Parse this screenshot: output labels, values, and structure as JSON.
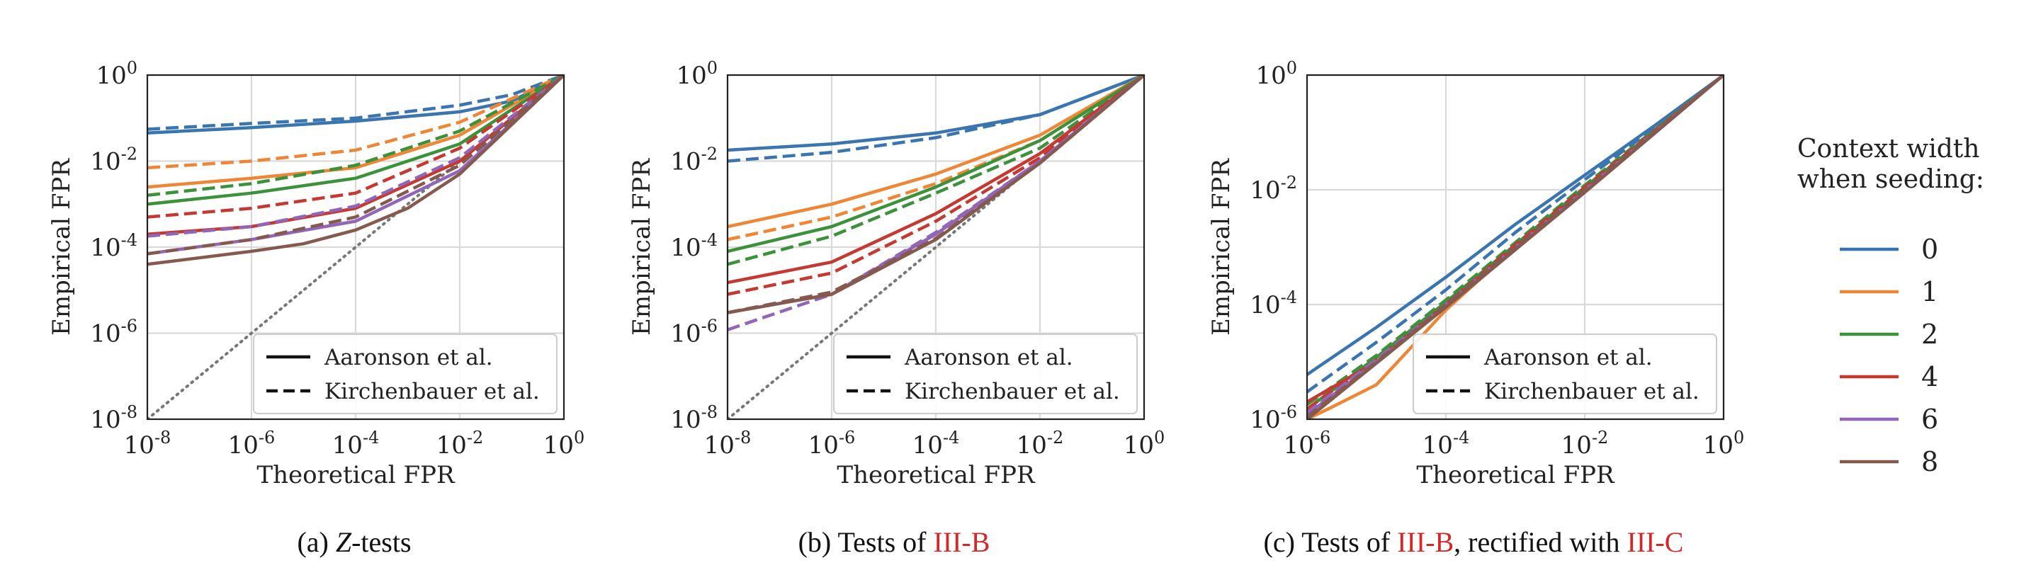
{
  "legend": {
    "title_line1": "Context width",
    "title_line2": "when seeding:",
    "entries": [
      {
        "label": "0",
        "color": "#3a75b0"
      },
      {
        "label": "1",
        "color": "#ef8636"
      },
      {
        "label": "2",
        "color": "#3b923b"
      },
      {
        "label": "4",
        "color": "#c53932"
      },
      {
        "label": "6",
        "color": "#9166b8"
      },
      {
        "label": "8",
        "color": "#85594e"
      }
    ]
  },
  "style_legend": {
    "solid": "Aaronson et al.",
    "dashed": "Kirchenbauer et al."
  },
  "captions": {
    "a": {
      "prefix": "(a) ",
      "math": "Z",
      "suffix": "-tests"
    },
    "b": {
      "prefix": "(b) Tests of ",
      "ref": "III-B"
    },
    "c": {
      "prefix": "(c) Tests of ",
      "ref1": "III-B",
      "middle": ", rectified with ",
      "ref2": "III-C"
    }
  },
  "chart_data": [
    {
      "type": "line",
      "xlabel": "Theoretical FPR",
      "ylabel": "Empirical FPR",
      "xscale": "log",
      "yscale": "log",
      "xlim": [
        1e-08,
        1
      ],
      "ylim": [
        1e-08,
        1
      ],
      "xticks": [
        1e-08,
        1e-06,
        0.0001,
        0.01,
        1
      ],
      "yticks": [
        1e-08,
        1e-06,
        0.0001,
        0.01,
        1
      ],
      "grid": true,
      "legend_position": "lower-right",
      "diagonal": {
        "style": "dotted",
        "color": "#777777"
      },
      "series": [
        {
          "context": "0",
          "method": "Aaronson et al.",
          "style": "solid",
          "x": [
            1e-08,
            1e-06,
            0.0001,
            0.01,
            0.1,
            1
          ],
          "y": [
            0.045,
            0.06,
            0.085,
            0.14,
            0.25,
            1
          ]
        },
        {
          "context": "0",
          "method": "Kirchenbauer et al.",
          "style": "dashed",
          "x": [
            1e-08,
            1e-06,
            0.0001,
            0.01,
            0.1,
            1
          ],
          "y": [
            0.055,
            0.075,
            0.1,
            0.2,
            0.35,
            1
          ]
        },
        {
          "context": "1",
          "method": "Aaronson et al.",
          "style": "solid",
          "x": [
            1e-08,
            1e-06,
            0.0001,
            0.01,
            1
          ],
          "y": [
            0.0025,
            0.004,
            0.007,
            0.04,
            1
          ]
        },
        {
          "context": "1",
          "method": "Kirchenbauer et al.",
          "style": "dashed",
          "x": [
            1e-08,
            1e-06,
            0.0001,
            0.01,
            1
          ],
          "y": [
            0.007,
            0.01,
            0.018,
            0.08,
            1
          ]
        },
        {
          "context": "2",
          "method": "Aaronson et al.",
          "style": "solid",
          "x": [
            1e-08,
            1e-06,
            0.0001,
            0.01,
            1
          ],
          "y": [
            0.001,
            0.0018,
            0.004,
            0.025,
            1
          ]
        },
        {
          "context": "2",
          "method": "Kirchenbauer et al.",
          "style": "dashed",
          "x": [
            1e-08,
            1e-06,
            0.0001,
            0.01,
            1
          ],
          "y": [
            0.0016,
            0.003,
            0.008,
            0.05,
            1
          ]
        },
        {
          "context": "4",
          "method": "Aaronson et al.",
          "style": "solid",
          "x": [
            1e-08,
            1e-06,
            0.0001,
            0.01,
            1
          ],
          "y": [
            0.0002,
            0.0003,
            0.0008,
            0.01,
            1
          ]
        },
        {
          "context": "4",
          "method": "Kirchenbauer et al.",
          "style": "dashed",
          "x": [
            1e-08,
            1e-06,
            0.0001,
            0.01,
            1
          ],
          "y": [
            0.0005,
            0.0008,
            0.0018,
            0.02,
            1
          ]
        },
        {
          "context": "6",
          "method": "Aaronson et al.",
          "style": "solid",
          "x": [
            1e-08,
            1e-06,
            0.0001,
            0.01,
            1
          ],
          "y": [
            7e-05,
            0.00015,
            0.0004,
            0.006,
            1
          ]
        },
        {
          "context": "6",
          "method": "Kirchenbauer et al.",
          "style": "dashed",
          "x": [
            1e-08,
            1e-06,
            0.0001,
            0.01,
            1
          ],
          "y": [
            0.00018,
            0.0003,
            0.0009,
            0.012,
            1
          ]
        },
        {
          "context": "8",
          "method": "Aaronson et al.",
          "style": "solid",
          "x": [
            1e-08,
            1e-06,
            1e-05,
            0.0001,
            0.001,
            0.01,
            1
          ],
          "y": [
            4e-05,
            8e-05,
            0.00012,
            0.00025,
            0.0008,
            0.005,
            1
          ]
        },
        {
          "context": "8",
          "method": "Kirchenbauer et al.",
          "style": "dashed",
          "x": [
            1e-08,
            1e-06,
            0.0001,
            0.01,
            1
          ],
          "y": [
            7e-05,
            0.00015,
            0.0005,
            0.008,
            1
          ]
        }
      ]
    },
    {
      "type": "line",
      "xlabel": "Theoretical FPR",
      "ylabel": "Empirical FPR",
      "xscale": "log",
      "yscale": "log",
      "xlim": [
        1e-08,
        1
      ],
      "ylim": [
        1e-08,
        1
      ],
      "xticks": [
        1e-08,
        1e-06,
        0.0001,
        0.01,
        1
      ],
      "yticks": [
        1e-08,
        1e-06,
        0.0001,
        0.01,
        1
      ],
      "grid": true,
      "legend_position": "lower-right",
      "diagonal": {
        "style": "dotted",
        "color": "#777777"
      },
      "series": [
        {
          "context": "0",
          "method": "Aaronson et al.",
          "style": "solid",
          "x": [
            1e-08,
            1e-06,
            0.0001,
            0.01,
            1
          ],
          "y": [
            0.018,
            0.025,
            0.045,
            0.12,
            1
          ]
        },
        {
          "context": "0",
          "method": "Kirchenbauer et al.",
          "style": "dashed",
          "x": [
            1e-08,
            1e-06,
            0.0001,
            0.01,
            1
          ],
          "y": [
            0.01,
            0.016,
            0.035,
            0.12,
            1
          ]
        },
        {
          "context": "1",
          "method": "Aaronson et al.",
          "style": "solid",
          "x": [
            1e-08,
            1e-06,
            0.0001,
            0.01,
            1
          ],
          "y": [
            0.0003,
            0.001,
            0.005,
            0.04,
            1
          ]
        },
        {
          "context": "1",
          "method": "Kirchenbauer et al.",
          "style": "dashed",
          "x": [
            1e-08,
            1e-06,
            0.0001,
            0.01,
            1
          ],
          "y": [
            0.00015,
            0.0005,
            0.003,
            0.03,
            1
          ]
        },
        {
          "context": "2",
          "method": "Aaronson et al.",
          "style": "solid",
          "x": [
            1e-08,
            1e-06,
            0.0001,
            0.01,
            1
          ],
          "y": [
            8e-05,
            0.0003,
            0.0025,
            0.03,
            1
          ]
        },
        {
          "context": "2",
          "method": "Kirchenbauer et al.",
          "style": "dashed",
          "x": [
            1e-08,
            1e-06,
            0.0001,
            0.01,
            1
          ],
          "y": [
            4e-05,
            0.00018,
            0.0018,
            0.02,
            1
          ]
        },
        {
          "context": "4",
          "method": "Aaronson et al.",
          "style": "solid",
          "x": [
            1e-08,
            1e-06,
            0.0001,
            0.01,
            1
          ],
          "y": [
            1.5e-05,
            4.5e-05,
            0.0006,
            0.015,
            1
          ]
        },
        {
          "context": "4",
          "method": "Kirchenbauer et al.",
          "style": "dashed",
          "x": [
            1e-08,
            1e-06,
            0.0001,
            0.01,
            1
          ],
          "y": [
            8e-06,
            2.5e-05,
            0.0004,
            0.012,
            1
          ]
        },
        {
          "context": "6",
          "method": "Aaronson et al.",
          "style": "solid",
          "x": [
            1e-08,
            1e-06,
            0.0001,
            0.01,
            1
          ],
          "y": [
            3e-06,
            8e-06,
            0.0002,
            0.01,
            1
          ]
        },
        {
          "context": "6",
          "method": "Kirchenbauer et al.",
          "style": "dashed",
          "x": [
            1e-08,
            1e-06,
            0.0001,
            0.01,
            1
          ],
          "y": [
            1.2e-06,
            8e-06,
            0.00022,
            0.01,
            1
          ]
        },
        {
          "context": "8",
          "method": "Aaronson et al.",
          "style": "solid",
          "x": [
            1e-08,
            1e-06,
            0.0001,
            0.01,
            1
          ],
          "y": [
            3e-06,
            8e-06,
            0.00015,
            0.009,
            1
          ]
        },
        {
          "context": "8",
          "method": "Kirchenbauer et al.",
          "style": "dashed",
          "x": [
            1e-08,
            1e-06,
            0.0001,
            0.01,
            1
          ],
          "y": [
            3e-06,
            9e-06,
            0.00016,
            0.009,
            1
          ]
        }
      ]
    },
    {
      "type": "line",
      "xlabel": "Theoretical FPR",
      "ylabel": "Empirical FPR",
      "xscale": "log",
      "yscale": "log",
      "xlim": [
        1e-06,
        1
      ],
      "ylim": [
        1e-06,
        1
      ],
      "xticks": [
        1e-06,
        0.0001,
        0.01,
        1
      ],
      "yticks": [
        1e-06,
        0.0001,
        0.01,
        1
      ],
      "grid": true,
      "legend_position": "lower-right",
      "series": [
        {
          "context": "0",
          "method": "Aaronson et al.",
          "style": "solid",
          "x": [
            1e-06,
            1e-05,
            0.0001,
            0.001,
            0.01,
            0.1,
            1
          ],
          "y": [
            6e-06,
            4e-05,
            0.0003,
            0.0025,
            0.018,
            0.13,
            1
          ]
        },
        {
          "context": "0",
          "method": "Kirchenbauer et al.",
          "style": "dashed",
          "x": [
            1e-06,
            1e-05,
            0.0001,
            0.001,
            0.01,
            0.1,
            1
          ],
          "y": [
            3e-06,
            2.2e-05,
            0.00018,
            0.0018,
            0.015,
            0.12,
            1
          ]
        },
        {
          "context": "1",
          "method": "Aaronson et al.",
          "style": "solid",
          "x": [
            1e-06,
            2e-06,
            1e-05,
            0.0001,
            0.001,
            0.01,
            1
          ],
          "y": [
            1e-06,
            1.5e-06,
            4e-06,
            8e-05,
            0.001,
            0.01,
            1
          ]
        },
        {
          "context": "1",
          "method": "Kirchenbauer et al.",
          "style": "dashed",
          "x": [
            1e-06,
            1e-05,
            0.0001,
            0.001,
            0.01,
            1
          ],
          "y": [
            1.2e-06,
            1.2e-05,
            0.0001,
            0.0011,
            0.011,
            1
          ]
        },
        {
          "context": "2",
          "method": "Aaronson et al.",
          "style": "solid",
          "x": [
            1e-06,
            1e-05,
            0.0001,
            0.001,
            0.01,
            1
          ],
          "y": [
            1.5e-06,
            1.2e-05,
            0.00011,
            0.0011,
            0.011,
            1
          ]
        },
        {
          "context": "2",
          "method": "Kirchenbauer et al.",
          "style": "dashed",
          "x": [
            1e-06,
            1e-05,
            0.0001,
            0.001,
            0.01,
            1
          ],
          "y": [
            1.8e-06,
            1.3e-05,
            0.00012,
            0.0012,
            0.012,
            1
          ]
        },
        {
          "context": "4",
          "method": "Aaronson et al.",
          "style": "solid",
          "x": [
            1e-06,
            1e-05,
            0.0001,
            0.001,
            0.01,
            1
          ],
          "y": [
            2e-06,
            1e-05,
            0.0001,
            0.001,
            0.01,
            1
          ]
        },
        {
          "context": "4",
          "method": "Kirchenbauer et al.",
          "style": "dashed",
          "x": [
            1e-06,
            1e-05,
            0.0001,
            0.001,
            0.01,
            1
          ],
          "y": [
            1.5e-06,
            1.1e-05,
            0.0001,
            0.0011,
            0.011,
            1
          ]
        },
        {
          "context": "6",
          "method": "Aaronson et al.",
          "style": "solid",
          "x": [
            1e-06,
            1e-05,
            0.0001,
            0.001,
            0.01,
            1
          ],
          "y": [
            1.2e-06,
            1e-05,
            9e-05,
            0.0009,
            0.0095,
            1
          ]
        },
        {
          "context": "6",
          "method": "Kirchenbauer et al.",
          "style": "dashed",
          "x": [
            1e-06,
            1e-05,
            0.0001,
            0.001,
            0.01,
            1
          ],
          "y": [
            1.3e-06,
            1.1e-05,
            0.0001,
            0.001,
            0.01,
            1
          ]
        },
        {
          "context": "8",
          "method": "Aaronson et al.",
          "style": "solid",
          "x": [
            1e-06,
            1e-05,
            0.0001,
            0.001,
            0.01,
            1
          ],
          "y": [
            1e-06,
            9.5e-06,
            9e-05,
            0.0009,
            0.009,
            1
          ]
        },
        {
          "context": "8",
          "method": "Kirchenbauer et al.",
          "style": "dashed",
          "x": [
            1e-06,
            1e-05,
            0.0001,
            0.001,
            0.01,
            1
          ],
          "y": [
            1.1e-06,
            1e-05,
            0.0001,
            0.001,
            0.01,
            1
          ]
        }
      ]
    }
  ]
}
